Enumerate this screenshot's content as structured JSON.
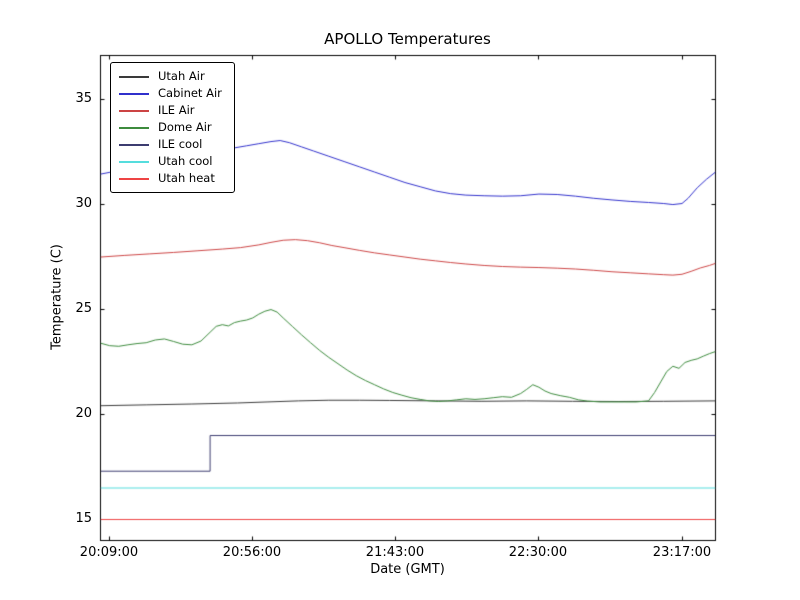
{
  "figure": {
    "background": "#ffffff"
  },
  "chart_data": {
    "type": "line",
    "title": "APOLLO Temperatures",
    "xlabel": "Date (GMT)",
    "ylabel": "Temperature (C)",
    "x_axis_unit": "minutes since 20:06:00 GMT",
    "xlim": [
      0,
      202
    ],
    "ylim": [
      14.0,
      37.1
    ],
    "grid": false,
    "legend_position": "upper left",
    "x_ticks": [
      {
        "pos": 3,
        "label": "20:09:00"
      },
      {
        "pos": 50,
        "label": "20:56:00"
      },
      {
        "pos": 97,
        "label": "21:43:00"
      },
      {
        "pos": 144,
        "label": "22:30:00"
      },
      {
        "pos": 191,
        "label": "23:17:00"
      }
    ],
    "y_ticks": [
      {
        "value": 15,
        "label": "15"
      },
      {
        "value": 20,
        "label": "20"
      },
      {
        "value": 25,
        "label": "25"
      },
      {
        "value": 30,
        "label": "30"
      },
      {
        "value": 35,
        "label": "35"
      }
    ],
    "series": [
      {
        "name": "Utah Air",
        "color": "#3a3a3a",
        "points": [
          [
            0,
            20.42
          ],
          [
            15,
            20.46
          ],
          [
            30,
            20.5
          ],
          [
            45,
            20.55
          ],
          [
            55,
            20.6
          ],
          [
            65,
            20.65
          ],
          [
            75,
            20.68
          ],
          [
            85,
            20.68
          ],
          [
            95,
            20.67
          ],
          [
            110,
            20.65
          ],
          [
            125,
            20.63
          ],
          [
            140,
            20.65
          ],
          [
            155,
            20.63
          ],
          [
            170,
            20.62
          ],
          [
            185,
            20.63
          ],
          [
            202,
            20.65
          ]
        ]
      },
      {
        "name": "Cabinet Air",
        "color": "#3030cc",
        "points": [
          [
            0,
            31.45
          ],
          [
            6,
            31.62
          ],
          [
            12,
            31.8
          ],
          [
            18,
            31.98
          ],
          [
            24,
            32.15
          ],
          [
            30,
            32.32
          ],
          [
            36,
            32.5
          ],
          [
            42,
            32.65
          ],
          [
            48,
            32.8
          ],
          [
            52,
            32.9
          ],
          [
            56,
            33.0
          ],
          [
            59,
            33.05
          ],
          [
            62,
            32.95
          ],
          [
            66,
            32.75
          ],
          [
            70,
            32.55
          ],
          [
            75,
            32.3
          ],
          [
            80,
            32.05
          ],
          [
            85,
            31.8
          ],
          [
            90,
            31.55
          ],
          [
            95,
            31.3
          ],
          [
            100,
            31.05
          ],
          [
            105,
            30.85
          ],
          [
            110,
            30.65
          ],
          [
            115,
            30.52
          ],
          [
            120,
            30.45
          ],
          [
            126,
            30.42
          ],
          [
            132,
            30.4
          ],
          [
            138,
            30.42
          ],
          [
            144,
            30.5
          ],
          [
            150,
            30.48
          ],
          [
            156,
            30.4
          ],
          [
            162,
            30.3
          ],
          [
            168,
            30.22
          ],
          [
            174,
            30.15
          ],
          [
            180,
            30.1
          ],
          [
            185,
            30.05
          ],
          [
            188,
            30.0
          ],
          [
            191,
            30.05
          ],
          [
            193,
            30.3
          ],
          [
            196,
            30.8
          ],
          [
            199,
            31.2
          ],
          [
            202,
            31.55
          ]
        ]
      },
      {
        "name": "ILE Air",
        "color": "#cc4444",
        "points": [
          [
            0,
            27.5
          ],
          [
            8,
            27.58
          ],
          [
            16,
            27.65
          ],
          [
            24,
            27.72
          ],
          [
            32,
            27.8
          ],
          [
            40,
            27.88
          ],
          [
            46,
            27.95
          ],
          [
            52,
            28.08
          ],
          [
            56,
            28.2
          ],
          [
            60,
            28.3
          ],
          [
            64,
            28.33
          ],
          [
            68,
            28.28
          ],
          [
            72,
            28.18
          ],
          [
            76,
            28.05
          ],
          [
            80,
            27.95
          ],
          [
            85,
            27.82
          ],
          [
            90,
            27.7
          ],
          [
            95,
            27.6
          ],
          [
            100,
            27.5
          ],
          [
            105,
            27.4
          ],
          [
            110,
            27.32
          ],
          [
            115,
            27.24
          ],
          [
            120,
            27.17
          ],
          [
            126,
            27.1
          ],
          [
            132,
            27.05
          ],
          [
            138,
            27.02
          ],
          [
            144,
            27.0
          ],
          [
            150,
            26.97
          ],
          [
            156,
            26.93
          ],
          [
            162,
            26.87
          ],
          [
            168,
            26.8
          ],
          [
            174,
            26.75
          ],
          [
            180,
            26.7
          ],
          [
            185,
            26.66
          ],
          [
            188,
            26.64
          ],
          [
            191,
            26.68
          ],
          [
            194,
            26.82
          ],
          [
            197,
            26.98
          ],
          [
            200,
            27.1
          ],
          [
            202,
            27.2
          ]
        ]
      },
      {
        "name": "Dome Air",
        "color": "#3d8b3d",
        "points": [
          [
            0,
            23.4
          ],
          [
            3,
            23.28
          ],
          [
            6,
            23.25
          ],
          [
            9,
            23.32
          ],
          [
            12,
            23.38
          ],
          [
            15,
            23.42
          ],
          [
            18,
            23.55
          ],
          [
            21,
            23.6
          ],
          [
            24,
            23.48
          ],
          [
            27,
            23.35
          ],
          [
            30,
            23.32
          ],
          [
            33,
            23.5
          ],
          [
            36,
            23.92
          ],
          [
            38,
            24.2
          ],
          [
            40,
            24.28
          ],
          [
            42,
            24.22
          ],
          [
            44,
            24.38
          ],
          [
            46,
            24.45
          ],
          [
            48,
            24.5
          ],
          [
            50,
            24.6
          ],
          [
            52,
            24.78
          ],
          [
            54,
            24.92
          ],
          [
            56,
            25.0
          ],
          [
            58,
            24.88
          ],
          [
            60,
            24.6
          ],
          [
            63,
            24.2
          ],
          [
            66,
            23.8
          ],
          [
            69,
            23.42
          ],
          [
            72,
            23.05
          ],
          [
            75,
            22.72
          ],
          [
            78,
            22.42
          ],
          [
            81,
            22.12
          ],
          [
            84,
            21.85
          ],
          [
            87,
            21.62
          ],
          [
            90,
            21.42
          ],
          [
            93,
            21.22
          ],
          [
            96,
            21.05
          ],
          [
            99,
            20.92
          ],
          [
            102,
            20.8
          ],
          [
            105,
            20.72
          ],
          [
            108,
            20.65
          ],
          [
            111,
            20.62
          ],
          [
            114,
            20.65
          ],
          [
            117,
            20.7
          ],
          [
            120,
            20.75
          ],
          [
            123,
            20.72
          ],
          [
            126,
            20.75
          ],
          [
            129,
            20.8
          ],
          [
            132,
            20.85
          ],
          [
            135,
            20.82
          ],
          [
            138,
            21.0
          ],
          [
            140,
            21.2
          ],
          [
            142,
            21.42
          ],
          [
            144,
            21.3
          ],
          [
            146,
            21.12
          ],
          [
            148,
            21.0
          ],
          [
            151,
            20.9
          ],
          [
            154,
            20.82
          ],
          [
            157,
            20.7
          ],
          [
            160,
            20.64
          ],
          [
            164,
            20.6
          ],
          [
            168,
            20.6
          ],
          [
            172,
            20.6
          ],
          [
            176,
            20.6
          ],
          [
            180,
            20.65
          ],
          [
            182,
            21.05
          ],
          [
            184,
            21.55
          ],
          [
            186,
            22.05
          ],
          [
            188,
            22.3
          ],
          [
            190,
            22.2
          ],
          [
            192,
            22.48
          ],
          [
            194,
            22.58
          ],
          [
            196,
            22.65
          ],
          [
            198,
            22.78
          ],
          [
            200,
            22.9
          ],
          [
            202,
            23.0
          ]
        ]
      },
      {
        "name": "ILE cool",
        "color": "#3c3c70",
        "points": [
          [
            0,
            17.3
          ],
          [
            36,
            17.3
          ],
          [
            36,
            19.0
          ],
          [
            202,
            19.0
          ]
        ]
      },
      {
        "name": "Utah cool",
        "color": "#55dddd",
        "points": [
          [
            0,
            16.5
          ],
          [
            202,
            16.5
          ]
        ]
      },
      {
        "name": "Utah heat",
        "color": "#ee4444",
        "points": [
          [
            0,
            15.0
          ],
          [
            202,
            15.0
          ]
        ]
      }
    ]
  }
}
